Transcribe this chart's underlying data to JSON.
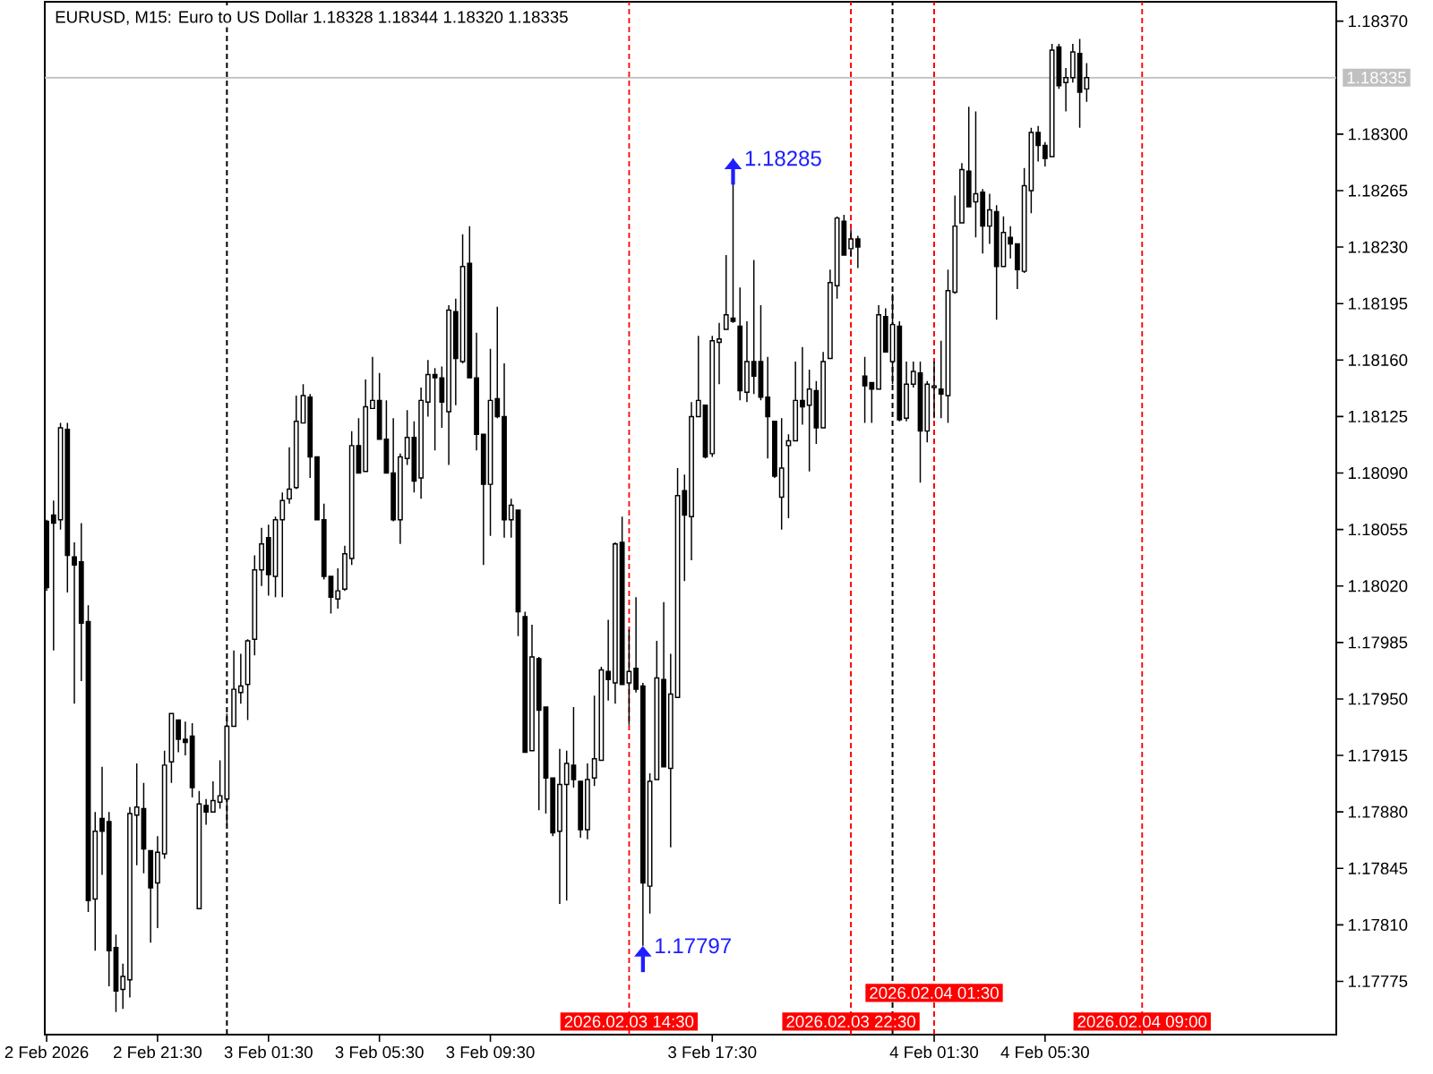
{
  "chart_data": {
    "type": "candlestick",
    "title": "EURUSD, M15:  Euro to US Dollar  1.18328 1.18344 1.18320 1.18335",
    "x": [
      "2026-02-02T17:30",
      "2026-02-02T17:45",
      "2026-02-02T18:00",
      "2026-02-02T18:15",
      "2026-02-02T18:30",
      "2026-02-02T18:45",
      "2026-02-02T19:00",
      "2026-02-02T19:15",
      "2026-02-02T19:30",
      "2026-02-02T19:45",
      "2026-02-02T20:00",
      "2026-02-02T20:15",
      "2026-02-02T20:30",
      "2026-02-02T20:45",
      "2026-02-02T21:00",
      "2026-02-02T21:15",
      "2026-02-02T21:30",
      "2026-02-02T21:45",
      "2026-02-02T22:00",
      "2026-02-02T22:15",
      "2026-02-02T22:30",
      "2026-02-02T22:45",
      "2026-02-02T23:00",
      "2026-02-02T23:15",
      "2026-02-02T23:30",
      "2026-02-02T23:45",
      "2026-02-03T00:00",
      "2026-02-03T00:15",
      "2026-02-03T00:30",
      "2026-02-03T00:45",
      "2026-02-03T01:00",
      "2026-02-03T01:15",
      "2026-02-03T01:30",
      "2026-02-03T01:45",
      "2026-02-03T02:00",
      "2026-02-03T02:15",
      "2026-02-03T02:30",
      "2026-02-03T02:45",
      "2026-02-03T03:00",
      "2026-02-03T03:15",
      "2026-02-03T03:30",
      "2026-02-03T03:45",
      "2026-02-03T04:00",
      "2026-02-03T04:15",
      "2026-02-03T04:30",
      "2026-02-03T04:45",
      "2026-02-03T05:00",
      "2026-02-03T05:15",
      "2026-02-03T05:30",
      "2026-02-03T05:45",
      "2026-02-03T06:00",
      "2026-02-03T06:15",
      "2026-02-03T06:30",
      "2026-02-03T06:45",
      "2026-02-03T07:00",
      "2026-02-03T07:15",
      "2026-02-03T07:30",
      "2026-02-03T07:45",
      "2026-02-03T08:00",
      "2026-02-03T08:15",
      "2026-02-03T08:30",
      "2026-02-03T08:45",
      "2026-02-03T09:00",
      "2026-02-03T09:15",
      "2026-02-03T09:30",
      "2026-02-03T09:45",
      "2026-02-03T10:00",
      "2026-02-03T10:15",
      "2026-02-03T10:30",
      "2026-02-03T10:45",
      "2026-02-03T11:00",
      "2026-02-03T11:15",
      "2026-02-03T11:30",
      "2026-02-03T11:45",
      "2026-02-03T12:00",
      "2026-02-03T12:15",
      "2026-02-03T12:30",
      "2026-02-03T12:45",
      "2026-02-03T13:00",
      "2026-02-03T13:15",
      "2026-02-03T13:30",
      "2026-02-03T13:45",
      "2026-02-03T14:00",
      "2026-02-03T14:15",
      "2026-02-03T14:30",
      "2026-02-03T14:45",
      "2026-02-03T15:00",
      "2026-02-03T15:15",
      "2026-02-03T15:30",
      "2026-02-03T15:45",
      "2026-02-03T16:00",
      "2026-02-03T16:15",
      "2026-02-03T16:30",
      "2026-02-03T16:45",
      "2026-02-03T17:00",
      "2026-02-03T17:15",
      "2026-02-03T17:30",
      "2026-02-03T17:45",
      "2026-02-03T18:00",
      "2026-02-03T18:15",
      "2026-02-03T18:30",
      "2026-02-03T18:45",
      "2026-02-03T19:00",
      "2026-02-03T19:15",
      "2026-02-03T19:30",
      "2026-02-03T19:45",
      "2026-02-03T20:00",
      "2026-02-03T20:15",
      "2026-02-03T20:30",
      "2026-02-03T20:45",
      "2026-02-03T21:00",
      "2026-02-03T21:15",
      "2026-02-03T21:30",
      "2026-02-03T21:45",
      "2026-02-03T22:00",
      "2026-02-03T22:15",
      "2026-02-03T22:30",
      "2026-02-03T22:45",
      "2026-02-03T23:00",
      "2026-02-03T23:15",
      "2026-02-03T23:30",
      "2026-02-03T23:45",
      "2026-02-04T00:00",
      "2026-02-04T00:15",
      "2026-02-04T00:30",
      "2026-02-04T00:45",
      "2026-02-04T01:00",
      "2026-02-04T01:15",
      "2026-02-04T01:30",
      "2026-02-04T01:45",
      "2026-02-04T02:00",
      "2026-02-04T02:15",
      "2026-02-04T02:30",
      "2026-02-04T02:45",
      "2026-02-04T03:00",
      "2026-02-04T03:15",
      "2026-02-04T03:30",
      "2026-02-04T03:45",
      "2026-02-04T04:00",
      "2026-02-04T04:15",
      "2026-02-04T04:30",
      "2026-02-04T04:45",
      "2026-02-04T05:00",
      "2026-02-04T05:15",
      "2026-02-04T05:30",
      "2026-02-04T05:45",
      "2026-02-04T06:00",
      "2026-02-04T06:15",
      "2026-02-04T06:30",
      "2026-02-04T06:45",
      "2026-02-04T07:00"
    ],
    "ohlc": [
      [
        1.1806,
        1.18061,
        1.18017,
        1.18019
      ],
      [
        1.18064,
        1.18073,
        1.1798,
        1.18059
      ],
      [
        1.18061,
        1.18121,
        1.18055,
        1.18118
      ],
      [
        1.18117,
        1.18121,
        1.18016,
        1.18039
      ],
      [
        1.18038,
        1.18047,
        1.17947,
        1.18033
      ],
      [
        1.18035,
        1.18059,
        1.17961,
        1.17997
      ],
      [
        1.17998,
        1.18008,
        1.17818,
        1.17825
      ],
      [
        1.17826,
        1.1788,
        1.17794,
        1.17868
      ],
      [
        1.17876,
        1.17908,
        1.17841,
        1.17868
      ],
      [
        1.17874,
        1.1788,
        1.17772,
        1.17794
      ],
      [
        1.17796,
        1.17804,
        1.17756,
        1.17769
      ],
      [
        1.1777,
        1.17786,
        1.17758,
        1.17778
      ],
      [
        1.17776,
        1.17883,
        1.17765,
        1.17879
      ],
      [
        1.17878,
        1.1791,
        1.17847,
        1.17883
      ],
      [
        1.17882,
        1.17898,
        1.17842,
        1.17857
      ],
      [
        1.17856,
        1.17856,
        1.17799,
        1.17833
      ],
      [
        1.17836,
        1.17865,
        1.17808,
        1.17855
      ],
      [
        1.17854,
        1.17918,
        1.17851,
        1.17909
      ],
      [
        1.17911,
        1.17941,
        1.17898,
        1.17941
      ],
      [
        1.17937,
        1.17937,
        1.17917,
        1.17925
      ],
      [
        1.17925,
        1.17936,
        1.17915,
        1.17923
      ],
      [
        1.17927,
        1.17935,
        1.17889,
        1.17895
      ],
      [
        1.1782,
        1.17893,
        1.1782,
        1.17885
      ],
      [
        1.17884,
        1.17888,
        1.17872,
        1.1788
      ],
      [
        1.1788,
        1.17899,
        1.1788,
        1.17887
      ],
      [
        1.17886,
        1.17912,
        1.17882,
        1.1789
      ],
      [
        1.17888,
        1.17941,
        1.17872,
        1.17933
      ],
      [
        1.17933,
        1.1798,
        1.17933,
        1.17956
      ],
      [
        1.17954,
        1.17978,
        1.17947,
        1.17958
      ],
      [
        1.17959,
        1.17987,
        1.17937,
        1.17986
      ],
      [
        1.17987,
        1.18039,
        1.17977,
        1.1803
      ],
      [
        1.1803,
        1.18056,
        1.1802,
        1.18046
      ],
      [
        1.1805,
        1.18058,
        1.18014,
        1.18027
      ],
      [
        1.18026,
        1.18063,
        1.18013,
        1.18061
      ],
      [
        1.18061,
        1.18078,
        1.18013,
        1.18073
      ],
      [
        1.18074,
        1.18106,
        1.18071,
        1.1808
      ],
      [
        1.18081,
        1.18138,
        1.1808,
        1.18122
      ],
      [
        1.18121,
        1.18145,
        1.18121,
        1.18138
      ],
      [
        1.18137,
        1.18139,
        1.18087,
        1.181
      ],
      [
        1.181,
        1.181,
        1.18061,
        1.18061
      ],
      [
        1.18061,
        1.18071,
        1.18024,
        1.18026
      ],
      [
        1.18026,
        1.18026,
        1.18003,
        1.18013
      ],
      [
        1.18012,
        1.18031,
        1.18006,
        1.18017
      ],
      [
        1.18018,
        1.18045,
        1.18017,
        1.1804
      ],
      [
        1.18037,
        1.18116,
        1.18033,
        1.18107
      ],
      [
        1.18107,
        1.18124,
        1.1809,
        1.1809
      ],
      [
        1.18091,
        1.18148,
        1.18091,
        1.18131
      ],
      [
        1.1813,
        1.18162,
        1.1813,
        1.18135
      ],
      [
        1.18135,
        1.18152,
        1.18111,
        1.18111
      ],
      [
        1.18111,
        1.18135,
        1.1809,
        1.1809
      ],
      [
        1.1809,
        1.18124,
        1.1806,
        1.18061
      ],
      [
        1.18061,
        1.18102,
        1.18046,
        1.181
      ],
      [
        1.18099,
        1.18129,
        1.18095,
        1.18112
      ],
      [
        1.18112,
        1.18122,
        1.18078,
        1.18085
      ],
      [
        1.18087,
        1.18143,
        1.18074,
        1.18135
      ],
      [
        1.18134,
        1.1816,
        1.18125,
        1.18151
      ],
      [
        1.18151,
        1.18155,
        1.18104,
        1.18149
      ],
      [
        1.18149,
        1.18156,
        1.18118,
        1.18134
      ],
      [
        1.18128,
        1.18194,
        1.18095,
        1.18191
      ],
      [
        1.1819,
        1.18198,
        1.18132,
        1.18161
      ],
      [
        1.18159,
        1.18238,
        1.18158,
        1.18218
      ],
      [
        1.1822,
        1.18243,
        1.18149,
        1.18149
      ],
      [
        1.18149,
        1.18177,
        1.18104,
        1.18114
      ],
      [
        1.18114,
        1.18114,
        1.18033,
        1.18083
      ],
      [
        1.18083,
        1.18167,
        1.18051,
        1.18135
      ],
      [
        1.18136,
        1.18193,
        1.18124,
        1.18125
      ],
      [
        1.18125,
        1.18158,
        1.1805,
        1.18061
      ],
      [
        1.18061,
        1.18074,
        1.1805,
        1.1807
      ],
      [
        1.18067,
        1.18067,
        1.17989,
        1.18004
      ],
      [
        1.18001,
        1.18004,
        1.17917,
        1.17917
      ],
      [
        1.17918,
        1.17996,
        1.17918,
        1.17976
      ],
      [
        1.17975,
        1.17976,
        1.17881,
        1.17943
      ],
      [
        1.17945,
        1.17945,
        1.17879,
        1.17901
      ],
      [
        1.17901,
        1.17901,
        1.17865,
        1.17867
      ],
      [
        1.17868,
        1.17919,
        1.17823,
        1.17897
      ],
      [
        1.17897,
        1.17918,
        1.17825,
        1.1791
      ],
      [
        1.17909,
        1.17945,
        1.17895,
        1.179
      ],
      [
        1.17899,
        1.17899,
        1.17864,
        1.17869
      ],
      [
        1.17869,
        1.1791,
        1.17863,
        1.179
      ],
      [
        1.17901,
        1.17952,
        1.17896,
        1.17913
      ],
      [
        1.17912,
        1.1797,
        1.17912,
        1.17968
      ],
      [
        1.17967,
        1.17999,
        1.17949,
        1.17962
      ],
      [
        1.1796,
        1.18047,
        1.17947,
        1.18046
      ],
      [
        1.18047,
        1.18063,
        1.17959,
        1.17959
      ],
      [
        1.1796,
        1.17993,
        1.17934,
        1.17967
      ],
      [
        1.17969,
        1.18013,
        1.17954,
        1.17956
      ],
      [
        1.17958,
        1.1796,
        1.17797,
        1.17836
      ],
      [
        1.17834,
        1.17904,
        1.17817,
        1.17899
      ],
      [
        1.179,
        1.17986,
        1.179,
        1.17963
      ],
      [
        1.17962,
        1.1801,
        1.17908,
        1.17908
      ],
      [
        1.17907,
        1.17978,
        1.17858,
        1.17953
      ],
      [
        1.17951,
        1.18093,
        1.17951,
        1.18076
      ],
      [
        1.18079,
        1.18089,
        1.18023,
        1.18064
      ],
      [
        1.18063,
        1.18134,
        1.18036,
        1.18125
      ],
      [
        1.18125,
        1.18175,
        1.18125,
        1.18135
      ],
      [
        1.18132,
        1.18132,
        1.18099,
        1.181
      ],
      [
        1.18102,
        1.18175,
        1.181,
        1.18172
      ],
      [
        1.18171,
        1.18183,
        1.18145,
        1.18173
      ],
      [
        1.18179,
        1.18225,
        1.18179,
        1.18188
      ],
      [
        1.18186,
        1.18285,
        1.18183,
        1.18184
      ],
      [
        1.18181,
        1.18205,
        1.18135,
        1.18141
      ],
      [
        1.1814,
        1.18184,
        1.18134,
        1.18159
      ],
      [
        1.18159,
        1.18222,
        1.18139,
        1.1815
      ],
      [
        1.18159,
        1.18194,
        1.18135,
        1.18137
      ],
      [
        1.18137,
        1.18162,
        1.18099,
        1.18125
      ],
      [
        1.18122,
        1.18122,
        1.18087,
        1.18088
      ],
      [
        1.18075,
        1.18124,
        1.18055,
        1.18093
      ],
      [
        1.18107,
        1.18114,
        1.18062,
        1.1811
      ],
      [
        1.1811,
        1.18159,
        1.1811,
        1.18135
      ],
      [
        1.18135,
        1.18168,
        1.1812,
        1.18131
      ],
      [
        1.18132,
        1.18154,
        1.18091,
        1.18142
      ],
      [
        1.18141,
        1.18147,
        1.18108,
        1.18118
      ],
      [
        1.18118,
        1.18165,
        1.18118,
        1.18159
      ],
      [
        1.18161,
        1.18216,
        1.18161,
        1.18208
      ],
      [
        1.18206,
        1.18249,
        1.18198,
        1.18248
      ],
      [
        1.18246,
        1.1825,
        1.18225,
        1.18225
      ],
      [
        1.18229,
        1.18241,
        1.18224,
        1.18235
      ],
      [
        1.18235,
        1.18237,
        1.18217,
        1.1823
      ],
      [
        1.1815,
        1.18162,
        1.18121,
        1.18144
      ],
      [
        1.18146,
        1.18146,
        1.18121,
        1.18142
      ],
      [
        1.18142,
        1.18194,
        1.18142,
        1.18188
      ],
      [
        1.18187,
        1.18192,
        1.18165,
        1.18165
      ],
      [
        1.18159,
        1.18201,
        1.18145,
        1.18182
      ],
      [
        1.18181,
        1.18184,
        1.18122,
        1.18123
      ],
      [
        1.18124,
        1.18159,
        1.18122,
        1.18145
      ],
      [
        1.18145,
        1.18159,
        1.18143,
        1.18153
      ],
      [
        1.18152,
        1.18159,
        1.18084,
        1.18116
      ],
      [
        1.18116,
        1.18147,
        1.18109,
        1.18145
      ],
      [
        1.18143,
        1.18159,
        1.18124,
        1.18144
      ],
      [
        1.18142,
        1.18172,
        1.18124,
        1.18139
      ],
      [
        1.18138,
        1.18216,
        1.18121,
        1.18203
      ],
      [
        1.18202,
        1.18262,
        1.18201,
        1.18243
      ],
      [
        1.18245,
        1.18282,
        1.18245,
        1.18278
      ],
      [
        1.18277,
        1.18317,
        1.18255,
        1.18255
      ],
      [
        1.18258,
        1.18314,
        1.18236,
        1.18263
      ],
      [
        1.18264,
        1.18266,
        1.18226,
        1.18243
      ],
      [
        1.18243,
        1.18263,
        1.18232,
        1.18253
      ],
      [
        1.18252,
        1.18256,
        1.18185,
        1.18218
      ],
      [
        1.18218,
        1.18249,
        1.18218,
        1.18239
      ],
      [
        1.18236,
        1.18243,
        1.18223,
        1.18232
      ],
      [
        1.18232,
        1.18232,
        1.18204,
        1.18216
      ],
      [
        1.18215,
        1.18279,
        1.18214,
        1.18268
      ],
      [
        1.18265,
        1.18304,
        1.18251,
        1.18301
      ],
      [
        1.18301,
        1.18305,
        1.18283,
        1.18293
      ],
      [
        1.18293,
        1.18295,
        1.1828,
        1.18285
      ],
      [
        1.18286,
        1.18356,
        1.18286,
        1.18352
      ],
      [
        1.18354,
        1.18356,
        1.18328,
        1.1833
      ],
      [
        1.18332,
        1.18341,
        1.18314,
        1.18335
      ],
      [
        1.18335,
        1.18356,
        1.18332,
        1.18351
      ],
      [
        1.1835,
        1.18359,
        1.18304,
        1.18326
      ],
      [
        1.18328,
        1.18344,
        1.1832,
        1.18335
      ]
    ],
    "xlim": [
      "2026-02-02T17:26",
      "2026-02-04T16:00"
    ],
    "ylim": [
      1.17742,
      1.18382
    ],
    "xticks": [
      {
        "value": "2026-02-02T17:30",
        "label": "2 Feb 2026"
      },
      {
        "value": "2026-02-02T21:30",
        "label": "2 Feb 21:30"
      },
      {
        "value": "2026-02-03T01:30",
        "label": "3 Feb 01:30"
      },
      {
        "value": "2026-02-03T05:30",
        "label": "3 Feb 05:30"
      },
      {
        "value": "2026-02-03T09:30",
        "label": "3 Feb 09:30"
      },
      {
        "value": "2026-02-03T17:30",
        "label": "3 Feb 17:30"
      },
      {
        "value": "2026-02-04T01:30",
        "label": "4 Feb 01:30"
      },
      {
        "value": "2026-02-04T05:30",
        "label": "4 Feb 05:30"
      }
    ],
    "yticks": [
      {
        "value": 1.1837,
        "label": "1.18370"
      },
      {
        "value": 1.183,
        "label": "1.18300"
      },
      {
        "value": 1.18265,
        "label": "1.18265"
      },
      {
        "value": 1.1823,
        "label": "1.18230"
      },
      {
        "value": 1.18195,
        "label": "1.18195"
      },
      {
        "value": 1.1816,
        "label": "1.18160"
      },
      {
        "value": 1.18125,
        "label": "1.18125"
      },
      {
        "value": 1.1809,
        "label": "1.18090"
      },
      {
        "value": 1.18055,
        "label": "1.18055"
      },
      {
        "value": 1.1802,
        "label": "1.18020"
      },
      {
        "value": 1.17985,
        "label": "1.17985"
      },
      {
        "value": 1.1795,
        "label": "1.17950"
      },
      {
        "value": 1.17915,
        "label": "1.17915"
      },
      {
        "value": 1.1788,
        "label": "1.17880"
      },
      {
        "value": 1.17845,
        "label": "1.17845"
      },
      {
        "value": 1.1781,
        "label": "1.17810"
      },
      {
        "value": 1.17775,
        "label": "1.17775"
      }
    ],
    "ref_lines": [
      {
        "axis": "x",
        "value": "2026-02-03T00:00",
        "color": "#000000",
        "line_style": "dashed"
      },
      {
        "axis": "x",
        "value": "2026-02-04T00:00",
        "color": "#000000",
        "line_style": "dashed"
      },
      {
        "axis": "x",
        "value": "2026-02-03T14:30",
        "label": "2026.02.03 14:30",
        "color": "#ff0000",
        "line_style": "dashed"
      },
      {
        "axis": "x",
        "value": "2026-02-03T22:30",
        "label": "2026.02.03 22:30",
        "color": "#ff0000",
        "line_style": "dashed"
      },
      {
        "axis": "x",
        "value": "2026-02-04T01:30",
        "label": "2026.02.04 01:30",
        "color": "#ff0000",
        "line_style": "dashed"
      },
      {
        "axis": "x",
        "value": "2026-02-04T09:00",
        "label": "2026.02.04 09:00",
        "color": "#ff0000",
        "line_style": "dashed"
      },
      {
        "axis": "y",
        "value": 1.18335,
        "label": "1.18335",
        "color": "#c0c0c0",
        "line_style": "solid"
      }
    ],
    "annotations": [
      {
        "text": "1.18285",
        "x": "2026-02-03T18:15",
        "y": 1.18285
      },
      {
        "text": "1.17797",
        "x": "2026-02-03T15:00",
        "y": 1.17797
      }
    ]
  }
}
